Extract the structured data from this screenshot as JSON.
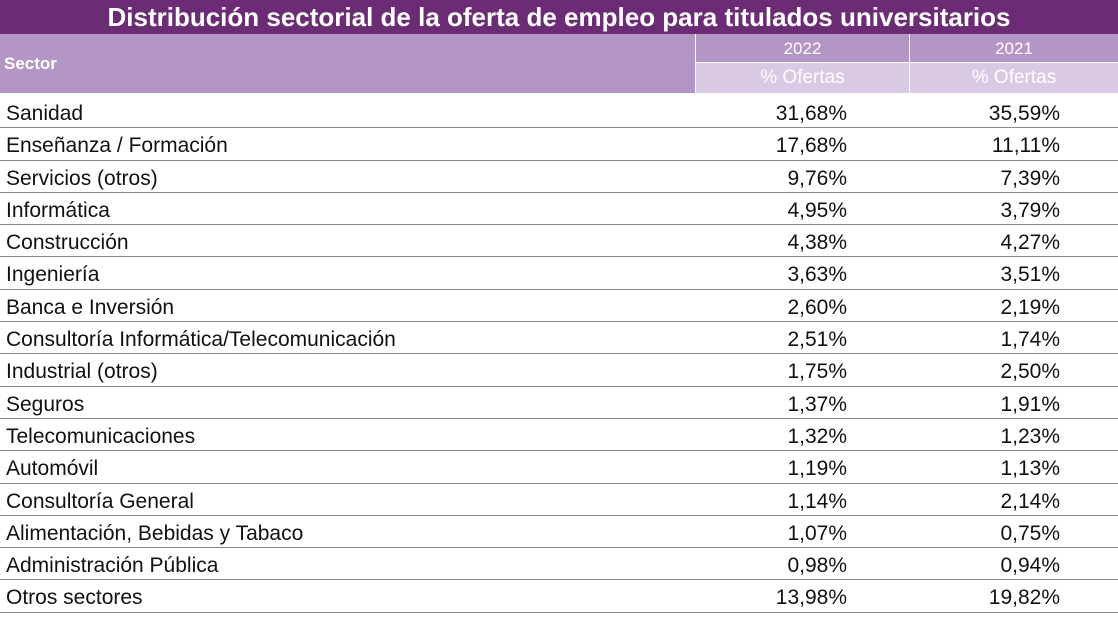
{
  "chart_data": {
    "type": "table",
    "title": "Distribución sectorial de la oferta de empleo para titulados universitarios",
    "columns": {
      "sector_header": "Sector",
      "years": [
        "2022",
        "2021"
      ],
      "subheaders": [
        "% Ofertas",
        "% Ofertas"
      ]
    },
    "rows": [
      {
        "sector": "Sanidad",
        "v2022": "31,68%",
        "v2021": "35,59%"
      },
      {
        "sector": "Enseñanza / Formación",
        "v2022": "17,68%",
        "v2021": "11,11%"
      },
      {
        "sector": "Servicios (otros)",
        "v2022": "9,76%",
        "v2021": "7,39%"
      },
      {
        "sector": "Informática",
        "v2022": "4,95%",
        "v2021": "3,79%"
      },
      {
        "sector": "Construcción",
        "v2022": "4,38%",
        "v2021": "4,27%"
      },
      {
        "sector": "Ingeniería",
        "v2022": "3,63%",
        "v2021": "3,51%"
      },
      {
        "sector": "Banca e Inversión",
        "v2022": "2,60%",
        "v2021": "2,19%"
      },
      {
        "sector": "Consultoría Informática/Telecomunicación",
        "v2022": "2,51%",
        "v2021": "1,74%"
      },
      {
        "sector": "Industrial (otros)",
        "v2022": "1,75%",
        "v2021": "2,50%"
      },
      {
        "sector": "Seguros",
        "v2022": "1,37%",
        "v2021": "1,91%"
      },
      {
        "sector": "Telecomunicaciones",
        "v2022": "1,32%",
        "v2021": "1,23%"
      },
      {
        "sector": "Automóvil",
        "v2022": "1,19%",
        "v2021": "1,13%"
      },
      {
        "sector": "Consultoría General",
        "v2022": "1,14%",
        "v2021": "2,14%"
      },
      {
        "sector": "Alimentación, Bebidas y Tabaco",
        "v2022": "1,07%",
        "v2021": "0,75%"
      },
      {
        "sector": "Administración Pública",
        "v2022": "0,98%",
        "v2021": "0,94%"
      },
      {
        "sector": "Otros sectores",
        "v2022": "13,98%",
        "v2021": "19,82%"
      }
    ],
    "colors": {
      "title_bg": "#6b2c75",
      "header_bg": "#b496c6",
      "subheader_bg": "#d9c9e2"
    }
  }
}
